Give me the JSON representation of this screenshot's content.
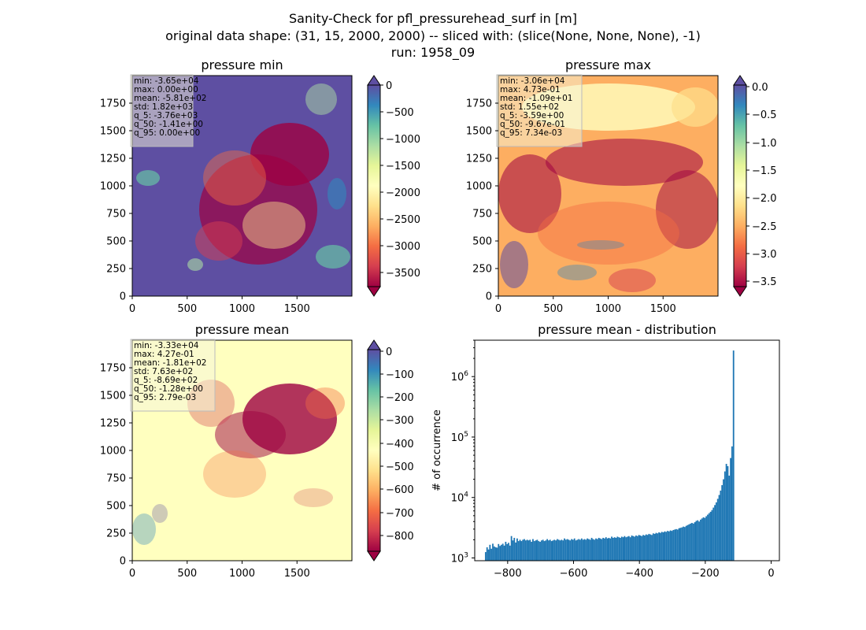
{
  "figure": {
    "title_lines": [
      "Sanity-Check for pfl_pressurehead_surf in [m]",
      "original data shape: (31, 15, 2000, 2000) -- sliced with: (slice(None, None, None), -1)",
      "run: 1958_09"
    ]
  },
  "chart_data": [
    {
      "type": "heatmap",
      "title": "pressure min",
      "xlim": [
        0,
        2000
      ],
      "ylim": [
        0,
        2000
      ],
      "xticks": [
        "0",
        "500",
        "1000",
        "1500"
      ],
      "yticks": [
        "0",
        "250",
        "500",
        "750",
        "1000",
        "1250",
        "1500",
        "1750"
      ],
      "colorbar": {
        "range": [
          -3760,
          0
        ],
        "ticks": [
          "0",
          "−500",
          "−1000",
          "−1500",
          "−2000",
          "−2500",
          "−3000",
          "−3500"
        ],
        "tick_values": [
          0,
          -500,
          -1000,
          -1500,
          -2000,
          -2500,
          -3000,
          -3500
        ],
        "extend": "both"
      },
      "stats": [
        "min: -3.65e+04",
        "max: 0.00e+00",
        "mean: -5.81e+02",
        "std: 1.82e+03",
        "q_5: -3.76e+03",
        "q_50: -1.41e+00",
        "q_95: 0.00e+00"
      ],
      "background_value": 0
    },
    {
      "type": "heatmap",
      "title": "pressure max",
      "xlim": [
        0,
        2000
      ],
      "ylim": [
        0,
        2000
      ],
      "xticks": [
        "0",
        "500",
        "1000",
        "1500"
      ],
      "yticks": [
        "0",
        "250",
        "500",
        "750",
        "1000",
        "1250",
        "1500",
        "1750"
      ],
      "colorbar": {
        "range": [
          -3.59,
          0.0073
        ],
        "ticks": [
          "0.0",
          "−0.5",
          "−1.0",
          "−1.5",
          "−2.0",
          "−2.5",
          "−3.0",
          "−3.5"
        ],
        "tick_values": [
          0,
          -0.5,
          -1.0,
          -1.5,
          -2.0,
          -2.5,
          -3.0,
          -3.5
        ],
        "extend": "both"
      },
      "stats": [
        "min: -3.06e+04",
        "max: 4.73e-01",
        "mean: -1.09e+01",
        "std: 1.55e+02",
        "q_5: -3.59e+00",
        "q_50: -9.67e-01",
        "q_95: 7.34e-03"
      ],
      "background_value": 0
    },
    {
      "type": "heatmap",
      "title": "pressure mean",
      "xlim": [
        0,
        2000
      ],
      "ylim": [
        0,
        2000
      ],
      "xticks": [
        "0",
        "500",
        "1000",
        "1500"
      ],
      "yticks": [
        "0",
        "250",
        "500",
        "750",
        "1000",
        "1250",
        "1500",
        "1750"
      ],
      "colorbar": {
        "range": [
          -869,
          0.0028
        ],
        "ticks": [
          "0",
          "−100",
          "−200",
          "−300",
          "−400",
          "−500",
          "−600",
          "−700",
          "−800"
        ],
        "tick_values": [
          0,
          -100,
          -200,
          -300,
          -400,
          -500,
          -600,
          -700,
          -800
        ],
        "extend": "both"
      },
      "stats": [
        "min: -3.33e+04",
        "max: 4.27e-01",
        "mean: -1.81e+02",
        "std: 7.63e+02",
        "q_5: -8.69e+02",
        "q_50: -1.28e+00",
        "q_95: 2.79e-03"
      ],
      "background_value": 0
    },
    {
      "type": "bar",
      "title": "pressure mean - distribution",
      "xlabel": "",
      "ylabel": "# of occurrence",
      "yscale": "log",
      "xlim": [
        -900,
        25
      ],
      "ylim": [
        900,
        4000000
      ],
      "xticks": [
        {
          "value": -800,
          "label": "−800"
        },
        {
          "value": -600,
          "label": "−600"
        },
        {
          "value": -400,
          "label": "−400"
        },
        {
          "value": -200,
          "label": "−200"
        },
        {
          "value": 0,
          "label": "0"
        }
      ],
      "yticks": [
        {
          "value": 1000,
          "base": "10",
          "exp": "3"
        },
        {
          "value": 10000,
          "base": "10",
          "exp": "4"
        },
        {
          "value": 100000,
          "base": "10",
          "exp": "5"
        },
        {
          "value": 1000000,
          "base": "10",
          "exp": "6"
        }
      ],
      "bins": {
        "x_start": -869,
        "bin_width": 4.35,
        "counts": [
          1250,
          1500,
          1380,
          1650,
          1420,
          1720,
          1550,
          1500,
          1480,
          1700,
          1580,
          1650,
          1720,
          1600,
          1850,
          1700,
          1780,
          1600,
          2300,
          1950,
          2150,
          1800,
          2100,
          1900,
          2000,
          1900,
          2000,
          2050,
          1950,
          2000,
          1950,
          2000,
          1850,
          2050,
          1900,
          1950,
          2000,
          1900,
          1850,
          1950,
          2000,
          1900,
          1950,
          2050,
          1950,
          2000,
          1900,
          1950,
          2000,
          1950,
          2050,
          2000,
          1950,
          2000,
          1950,
          2100,
          2000,
          2050,
          2000,
          1950,
          2050,
          2000,
          2100,
          1950,
          2000,
          2050,
          2000,
          2100,
          2000,
          2050,
          2000,
          2100,
          2050,
          2000,
          2150,
          2050,
          2000,
          2100,
          2050,
          2150,
          2100,
          2050,
          2150,
          2100,
          2200,
          2100,
          2150,
          2100,
          2250,
          2150,
          2200,
          2150,
          2250,
          2200,
          2150,
          2250,
          2200,
          2300,
          2200,
          2250,
          2300,
          2200,
          2350,
          2300,
          2250,
          2350,
          2300,
          2400,
          2350,
          2300,
          2400,
          2350,
          2450,
          2400,
          2500,
          2450,
          2400,
          2550,
          2500,
          2600,
          2550,
          2650,
          2600,
          2700,
          2650,
          2750,
          2700,
          2800,
          2750,
          2850,
          2800,
          2900,
          2950,
          3000,
          2950,
          3100,
          3150,
          3200,
          3300,
          3250,
          3400,
          3500,
          3600,
          3700,
          3800,
          3700,
          3900,
          4100,
          4200,
          4000,
          4300,
          4500,
          4700,
          4600,
          4900,
          5200,
          5500,
          5800,
          6200,
          6800,
          7500,
          8300,
          9500,
          11000,
          13000,
          16000,
          20000,
          27000,
          36000,
          33000,
          23000,
          45000,
          70000,
          2700000
        ]
      }
    }
  ]
}
